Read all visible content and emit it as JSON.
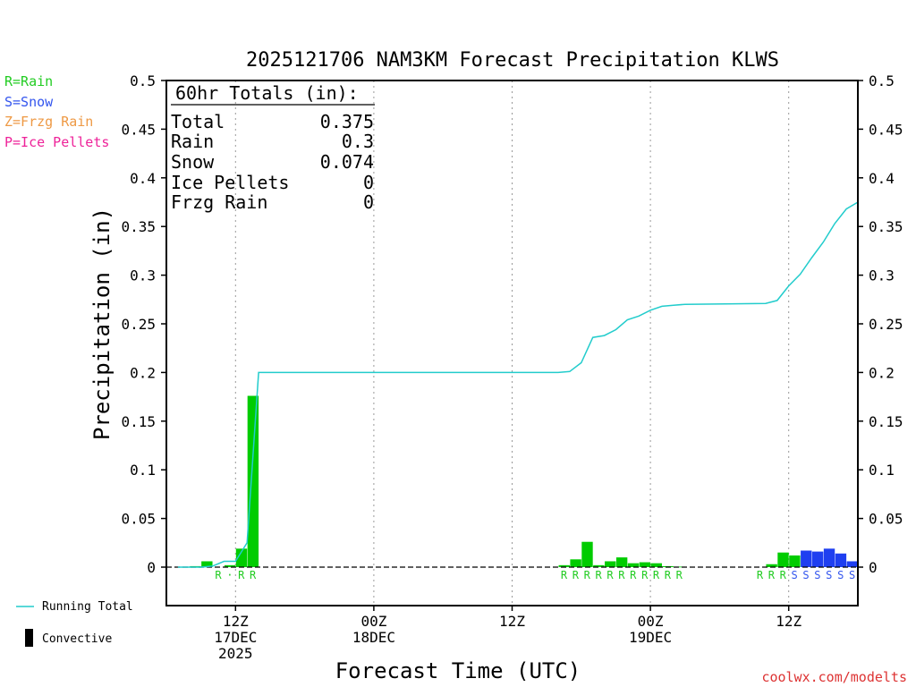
{
  "chart_data": {
    "type": "bar",
    "title": "2025121706 NAM3KM Forecast Precipitation KLWS",
    "xlabel": "Forecast Time (UTC)",
    "ylabel": "Precipitation (in)",
    "ylim": [
      0,
      0.5
    ],
    "y_ticks": [
      0,
      0.05,
      0.1,
      0.15,
      0.2,
      0.25,
      0.3,
      0.35,
      0.4,
      0.45,
      0.5
    ],
    "y_tick_labels": [
      "0",
      "0.05",
      "0.1",
      "0.15",
      "0.2",
      "0.25",
      "0.3",
      "0.35",
      "0.4",
      "0.45",
      "0.5"
    ],
    "x_range_hours": [
      6,
      66
    ],
    "grid": "vertical dotted at 12Z and 00Z",
    "x_ticks": [
      {
        "hour": 12,
        "lines": [
          "12Z",
          "17DEC",
          "2025"
        ]
      },
      {
        "hour": 24,
        "lines": [
          "00Z",
          "18DEC"
        ]
      },
      {
        "hour": 36,
        "lines": [
          "12Z"
        ]
      },
      {
        "hour": 48,
        "lines": [
          "00Z",
          "19DEC"
        ]
      },
      {
        "hour": 60,
        "lines": [
          "12Z"
        ]
      }
    ],
    "totals_box": {
      "header": "60hr Totals (in):",
      "rows": [
        {
          "label": "Total",
          "value": "0.375"
        },
        {
          "label": "Rain",
          "value": "0.3"
        },
        {
          "label": "Snow",
          "value": "0.074"
        },
        {
          "label": "Ice Pellets",
          "value": "0"
        },
        {
          "label": "Frzg Rain",
          "value": "0"
        }
      ]
    },
    "ptype_legend": [
      {
        "text": "R=Rain",
        "color": "#22cc22"
      },
      {
        "text": "S=Snow",
        "color": "#3355ee"
      },
      {
        "text": "Z=Frzg Rain",
        "color": "#ee9944"
      },
      {
        "text": "P=Ice Pellets",
        "color": "#ee2299"
      }
    ],
    "series_legend": {
      "running_total": "Running Total",
      "convective": "Convective"
    },
    "colors": {
      "rain": "#00cc00",
      "snow": "#1f3ff0",
      "running_total": "#22cccc",
      "rain_label": "#22cc22",
      "snow_label": "#3355ee"
    },
    "bars": [
      {
        "hour": 9,
        "value": 0.001,
        "type": "rain"
      },
      {
        "hour": 10,
        "value": 0.006,
        "type": "rain"
      },
      {
        "hour": 11,
        "value": 0.0,
        "type": "rain"
      },
      {
        "hour": 12,
        "value": 0.002,
        "type": "rain"
      },
      {
        "hour": 13,
        "value": 0.019,
        "type": "rain"
      },
      {
        "hour": 14,
        "value": 0.176,
        "type": "rain"
      },
      {
        "hour": 41,
        "value": 0.002,
        "type": "rain"
      },
      {
        "hour": 42,
        "value": 0.008,
        "type": "rain"
      },
      {
        "hour": 43,
        "value": 0.026,
        "type": "rain"
      },
      {
        "hour": 44,
        "value": 0.002,
        "type": "rain"
      },
      {
        "hour": 45,
        "value": 0.006,
        "type": "rain"
      },
      {
        "hour": 46,
        "value": 0.01,
        "type": "rain"
      },
      {
        "hour": 47,
        "value": 0.004,
        "type": "rain"
      },
      {
        "hour": 48,
        "value": 0.005,
        "type": "rain"
      },
      {
        "hour": 49,
        "value": 0.004,
        "type": "rain"
      },
      {
        "hour": 50,
        "value": 0.001,
        "type": "rain"
      },
      {
        "hour": 51,
        "value": 0.0005,
        "type": "rain"
      },
      {
        "hour": 59,
        "value": 0.003,
        "type": "rain"
      },
      {
        "hour": 60,
        "value": 0.015,
        "type": "rain"
      },
      {
        "hour": 61,
        "value": 0.012,
        "type": "rain"
      },
      {
        "hour": 62,
        "value": 0.017,
        "type": "snow"
      },
      {
        "hour": 63,
        "value": 0.016,
        "type": "snow"
      },
      {
        "hour": 64,
        "value": 0.019,
        "type": "snow"
      },
      {
        "hour": 65,
        "value": 0.014,
        "type": "snow"
      },
      {
        "hour": 66,
        "value": 0.006,
        "type": "snow"
      }
    ],
    "ptype_labels": [
      {
        "hour": 11,
        "text": "R",
        "type": "rain"
      },
      {
        "hour": 12,
        "text": "·",
        "type": "rain"
      },
      {
        "hour": 13,
        "text": "R",
        "type": "rain"
      },
      {
        "hour": 14,
        "text": "R",
        "type": "rain"
      },
      {
        "hour": 41,
        "text": "R",
        "type": "rain"
      },
      {
        "hour": 42,
        "text": "R",
        "type": "rain"
      },
      {
        "hour": 43,
        "text": "R",
        "type": "rain"
      },
      {
        "hour": 44,
        "text": "R",
        "type": "rain"
      },
      {
        "hour": 45,
        "text": "R",
        "type": "rain"
      },
      {
        "hour": 46,
        "text": "R",
        "type": "rain"
      },
      {
        "hour": 47,
        "text": "R",
        "type": "rain"
      },
      {
        "hour": 48,
        "text": "R",
        "type": "rain"
      },
      {
        "hour": 49,
        "text": "R",
        "type": "rain"
      },
      {
        "hour": 50,
        "text": "R",
        "type": "rain"
      },
      {
        "hour": 51,
        "text": "R",
        "type": "rain"
      },
      {
        "hour": 58,
        "text": "R",
        "type": "rain"
      },
      {
        "hour": 59,
        "text": "R",
        "type": "rain"
      },
      {
        "hour": 60,
        "text": "R",
        "type": "rain"
      },
      {
        "hour": 61,
        "text": "S",
        "type": "snow"
      },
      {
        "hour": 62,
        "text": "S",
        "type": "snow"
      },
      {
        "hour": 63,
        "text": "S",
        "type": "snow"
      },
      {
        "hour": 64,
        "text": "S",
        "type": "snow"
      },
      {
        "hour": 65,
        "text": "S",
        "type": "snow"
      },
      {
        "hour": 66,
        "text": "S",
        "type": "snow"
      }
    ],
    "running_total": [
      {
        "hour": 7,
        "value": 0.0
      },
      {
        "hour": 9,
        "value": 0.0
      },
      {
        "hour": 10,
        "value": 0.001
      },
      {
        "hour": 11,
        "value": 0.006
      },
      {
        "hour": 12,
        "value": 0.006
      },
      {
        "hour": 13,
        "value": 0.025
      },
      {
        "hour": 14,
        "value": 0.2
      },
      {
        "hour": 40,
        "value": 0.2
      },
      {
        "hour": 41,
        "value": 0.201
      },
      {
        "hour": 42,
        "value": 0.21
      },
      {
        "hour": 43,
        "value": 0.236
      },
      {
        "hour": 44,
        "value": 0.238
      },
      {
        "hour": 45,
        "value": 0.244
      },
      {
        "hour": 46,
        "value": 0.254
      },
      {
        "hour": 47,
        "value": 0.258
      },
      {
        "hour": 48,
        "value": 0.264
      },
      {
        "hour": 49,
        "value": 0.268
      },
      {
        "hour": 50,
        "value": 0.269
      },
      {
        "hour": 51,
        "value": 0.27
      },
      {
        "hour": 58,
        "value": 0.271
      },
      {
        "hour": 59,
        "value": 0.274
      },
      {
        "hour": 60,
        "value": 0.289
      },
      {
        "hour": 61,
        "value": 0.301
      },
      {
        "hour": 62,
        "value": 0.318
      },
      {
        "hour": 63,
        "value": 0.334
      },
      {
        "hour": 64,
        "value": 0.353
      },
      {
        "hour": 65,
        "value": 0.368
      },
      {
        "hour": 66,
        "value": 0.375
      }
    ],
    "credit": "coolwx.com/modelts"
  }
}
